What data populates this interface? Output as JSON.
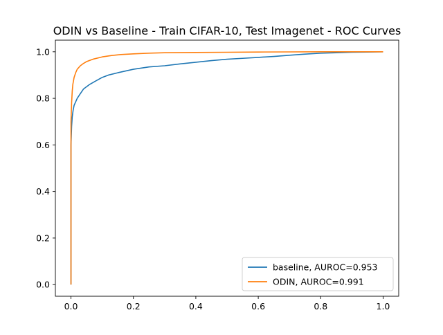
{
  "chart_data": {
    "type": "line",
    "title": "ODIN vs Baseline - Train CIFAR-10, Test Imagenet - ROC Curves",
    "xlabel": "",
    "ylabel": "",
    "xlim": [
      -0.05,
      1.05
    ],
    "ylim": [
      -0.05,
      1.05
    ],
    "x_ticks": [
      0.0,
      0.2,
      0.4,
      0.6,
      0.8,
      1.0
    ],
    "y_ticks": [
      0.0,
      0.2,
      0.4,
      0.6,
      0.8,
      1.0
    ],
    "x_tick_labels": [
      "0.0",
      "0.2",
      "0.4",
      "0.6",
      "0.8",
      "1.0"
    ],
    "y_tick_labels": [
      "0.0",
      "0.2",
      "0.4",
      "0.6",
      "0.8",
      "1.0"
    ],
    "grid": false,
    "legend_position": "lower-right",
    "series": [
      {
        "name": "baseline, AUROC=0.953",
        "color": "#1f77b4",
        "x": [
          0.0,
          0.0,
          0.0,
          0.002,
          0.004,
          0.007,
          0.01,
          0.015,
          0.02,
          0.03,
          0.04,
          0.05,
          0.06,
          0.08,
          0.1,
          0.12,
          0.15,
          0.2,
          0.25,
          0.3,
          0.35,
          0.4,
          0.45,
          0.5,
          0.55,
          0.6,
          0.65,
          0.7,
          0.75,
          0.8,
          0.85,
          0.9,
          0.95,
          1.0
        ],
        "y": [
          0.0,
          0.4,
          0.6,
          0.68,
          0.72,
          0.75,
          0.77,
          0.785,
          0.8,
          0.82,
          0.84,
          0.85,
          0.86,
          0.875,
          0.89,
          0.9,
          0.91,
          0.925,
          0.935,
          0.94,
          0.948,
          0.955,
          0.962,
          0.968,
          0.972,
          0.976,
          0.98,
          0.985,
          0.99,
          0.994,
          0.996,
          0.998,
          0.999,
          1.0
        ]
      },
      {
        "name": "ODIN, AUROC=0.991",
        "color": "#ff7f0e",
        "x": [
          0.0,
          0.0,
          0.0,
          0.002,
          0.004,
          0.006,
          0.008,
          0.01,
          0.015,
          0.02,
          0.03,
          0.04,
          0.05,
          0.07,
          0.1,
          0.13,
          0.16,
          0.2,
          0.25,
          0.3,
          0.4,
          0.5,
          0.6,
          0.7,
          0.8,
          0.9,
          1.0
        ],
        "y": [
          0.0,
          0.5,
          0.7,
          0.78,
          0.83,
          0.86,
          0.875,
          0.89,
          0.91,
          0.925,
          0.94,
          0.95,
          0.958,
          0.968,
          0.978,
          0.984,
          0.988,
          0.991,
          0.994,
          0.996,
          0.997,
          0.998,
          0.999,
          0.9995,
          1.0,
          1.0,
          1.0
        ]
      }
    ]
  }
}
